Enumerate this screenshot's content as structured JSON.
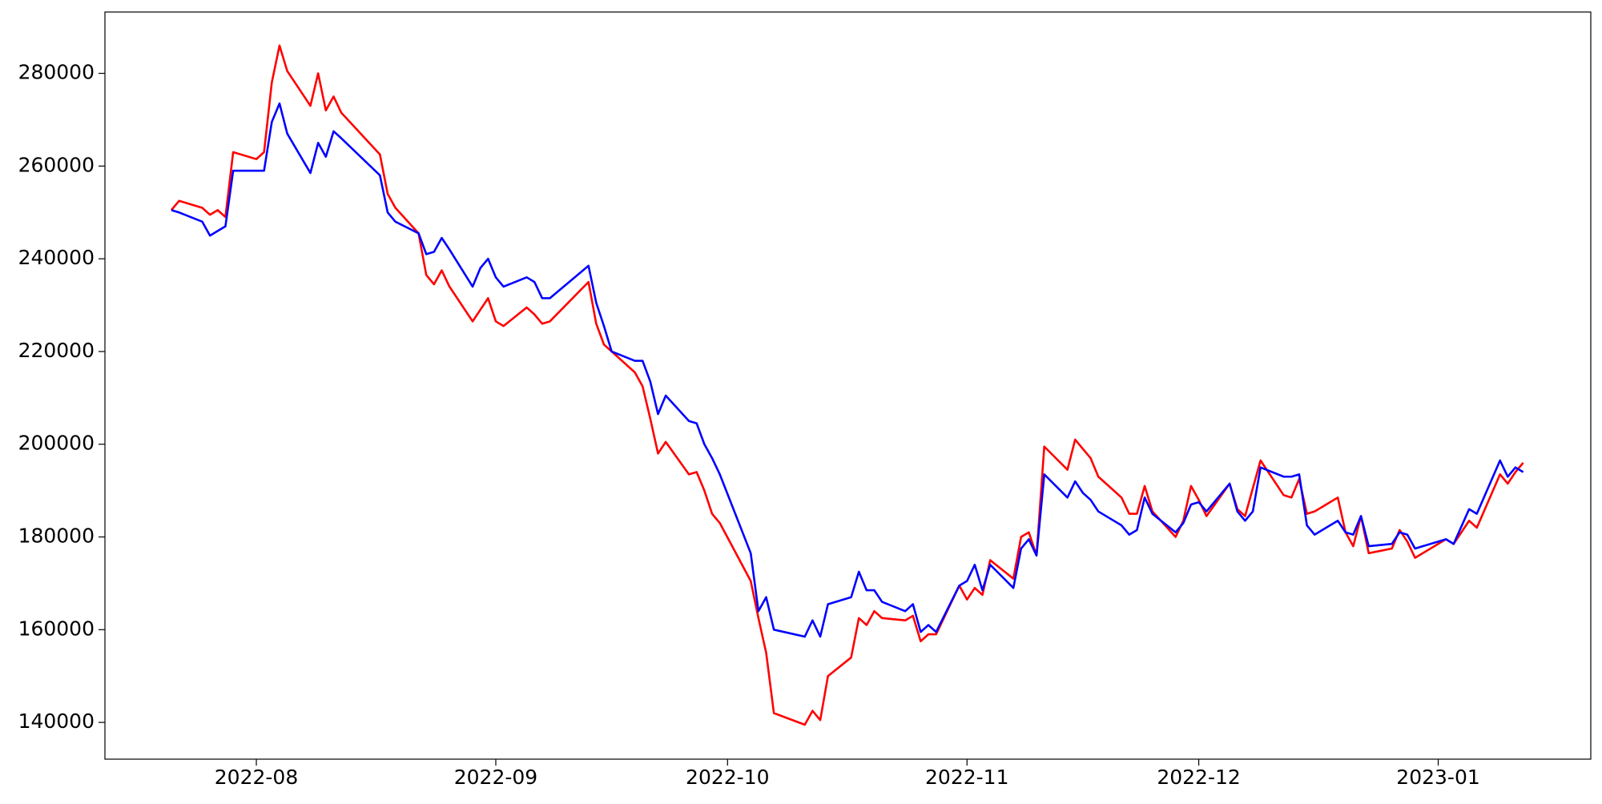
{
  "chart_data": {
    "type": "line",
    "x": [
      19194,
      19195,
      19198,
      19199,
      19200,
      19201,
      19202,
      19205,
      19206,
      19207,
      19208,
      19209,
      19212,
      19213,
      19214,
      19215,
      19216,
      19221,
      19222,
      19223,
      19226,
      19227,
      19228,
      19229,
      19230,
      19233,
      19234,
      19235,
      19236,
      19237,
      19240,
      19241,
      19242,
      19243,
      19248,
      19249,
      19250,
      19251,
      19254,
      19255,
      19256,
      19257,
      19258,
      19261,
      19262,
      19263,
      19264,
      19265,
      19269,
      19270,
      19271,
      19272,
      19276,
      19277,
      19278,
      19279,
      19282,
      19283,
      19284,
      19285,
      19286,
      19289,
      19290,
      19291,
      19292,
      19293,
      19296,
      19297,
      19298,
      19299,
      19300,
      19303,
      19304,
      19305,
      19306,
      19307,
      19310,
      19311,
      19312,
      19313,
      19314,
      19317,
      19318,
      19319,
      19320,
      19321,
      19324,
      19325,
      19326,
      19327,
      19328,
      19331,
      19332,
      19333,
      19334,
      19335,
      19338,
      19339,
      19340,
      19341,
      19342,
      19345,
      19346,
      19347,
      19348,
      19349,
      19352,
      19353,
      19354,
      19355,
      19359,
      19360,
      19362,
      19363,
      19366,
      19367,
      19368,
      19369
    ],
    "series": [
      {
        "color": "#ff0000",
        "values": [
          250500,
          252500,
          251000,
          249500,
          250500,
          249000,
          263000,
          261500,
          263000,
          278000,
          286000,
          280500,
          273000,
          280000,
          272000,
          275000,
          271500,
          262500,
          254000,
          251000,
          245500,
          236500,
          234500,
          237500,
          234000,
          226500,
          229000,
          231500,
          226500,
          225500,
          229500,
          228000,
          226000,
          226500,
          235000,
          226000,
          221500,
          220000,
          215500,
          212500,
          205500,
          198000,
          200500,
          193500,
          194000,
          190000,
          185000,
          183000,
          170500,
          162500,
          155000,
          142000,
          139500,
          142500,
          140500,
          150000,
          154000,
          162500,
          161000,
          164000,
          162500,
          162000,
          163000,
          157500,
          159000,
          159000,
          169500,
          166500,
          169000,
          167500,
          175000,
          171000,
          180000,
          181000,
          176000,
          199500,
          194500,
          201000,
          199000,
          197000,
          193000,
          188500,
          185000,
          185000,
          191000,
          185500,
          180000,
          183500,
          191000,
          188000,
          184500,
          191500,
          186000,
          184500,
          190500,
          196500,
          189000,
          188500,
          192500,
          185000,
          185500,
          188500,
          181000,
          178000,
          184500,
          176500,
          177500,
          181500,
          179000,
          175500,
          179500,
          178500,
          183500,
          182000,
          193500,
          191500,
          194000,
          196000
        ]
      },
      {
        "color": "#0000ff",
        "values": [
          250500,
          250000,
          248000,
          245000,
          246000,
          247000,
          259000,
          259000,
          259000,
          269500,
          273500,
          267000,
          258500,
          265000,
          262000,
          267500,
          266000,
          258000,
          250000,
          248000,
          245500,
          241000,
          241500,
          244500,
          242000,
          234000,
          238000,
          240000,
          236000,
          234000,
          236000,
          235000,
          231500,
          231500,
          238500,
          230500,
          225500,
          220000,
          218000,
          218000,
          213500,
          206500,
          210500,
          205000,
          204500,
          200000,
          197000,
          193500,
          176500,
          164000,
          167000,
          160000,
          158500,
          162000,
          158500,
          165500,
          167000,
          172500,
          168500,
          168500,
          166000,
          164000,
          165500,
          159500,
          161000,
          159500,
          169500,
          170500,
          174000,
          168500,
          174000,
          169000,
          177500,
          179500,
          176000,
          193500,
          188500,
          192000,
          189500,
          188000,
          185500,
          182500,
          180500,
          181500,
          188500,
          185000,
          181000,
          183000,
          187000,
          187500,
          185500,
          191500,
          185500,
          183500,
          185500,
          195000,
          193000,
          193000,
          193500,
          182500,
          180500,
          183500,
          181000,
          180500,
          184500,
          178000,
          178500,
          181000,
          180500,
          177500,
          179500,
          178500,
          186000,
          185000,
          196500,
          193000,
          195000,
          194000
        ]
      }
    ],
    "xlim": [
      19185.4,
      19377.75
    ],
    "ylim": [
      132072,
      293228
    ],
    "xticks": [
      {
        "value": 19205,
        "label": "2022-08"
      },
      {
        "value": 19236,
        "label": "2022-09"
      },
      {
        "value": 19266,
        "label": "2022-10"
      },
      {
        "value": 19297,
        "label": "2022-11"
      },
      {
        "value": 19327,
        "label": "2022-12"
      },
      {
        "value": 19358,
        "label": "2023-01"
      }
    ],
    "yticks": [
      140000,
      160000,
      180000,
      200000,
      220000,
      240000,
      260000,
      280000
    ],
    "grid": false
  }
}
